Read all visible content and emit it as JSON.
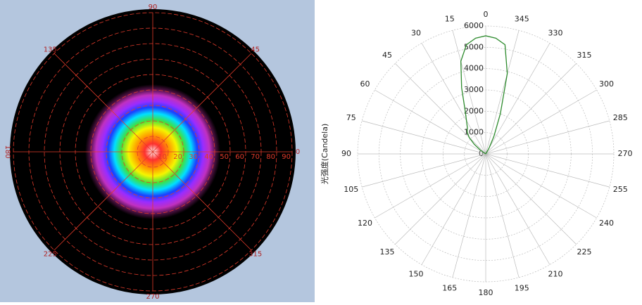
{
  "chart_data": [
    {
      "type": "polar-heatmap",
      "angles": [
        0,
        45,
        90,
        135,
        180,
        225,
        270,
        315
      ],
      "rlim": [
        0,
        90
      ],
      "rticks": [
        10,
        20,
        30,
        40,
        50,
        60,
        70,
        80,
        90
      ],
      "color": "#e03a2a"
    },
    {
      "type": "polar",
      "y_label": "光强度(Candela)",
      "thetaticks": [
        0,
        15,
        30,
        45,
        60,
        75,
        90,
        105,
        120,
        135,
        150,
        165,
        180,
        195,
        210,
        225,
        240,
        255,
        270,
        285,
        300,
        315,
        330,
        345
      ],
      "rlim": [
        0,
        6000
      ],
      "rticks": [
        0,
        1000,
        2000,
        3000,
        4000,
        5000,
        6000
      ],
      "grid": true,
      "series": [
        {
          "color": "#2e8b2e",
          "x": [
            60,
            55,
            50,
            45,
            40,
            35,
            30,
            25,
            20,
            15,
            10,
            5,
            0,
            355,
            350,
            345,
            340,
            335,
            330,
            325
          ],
          "values": [
            0,
            300,
            700,
            1100,
            1350,
            1500,
            1800,
            2300,
            3300,
            4500,
            5200,
            5450,
            5540,
            5450,
            5200,
            3900,
            2000,
            900,
            300,
            0
          ]
        }
      ]
    }
  ]
}
